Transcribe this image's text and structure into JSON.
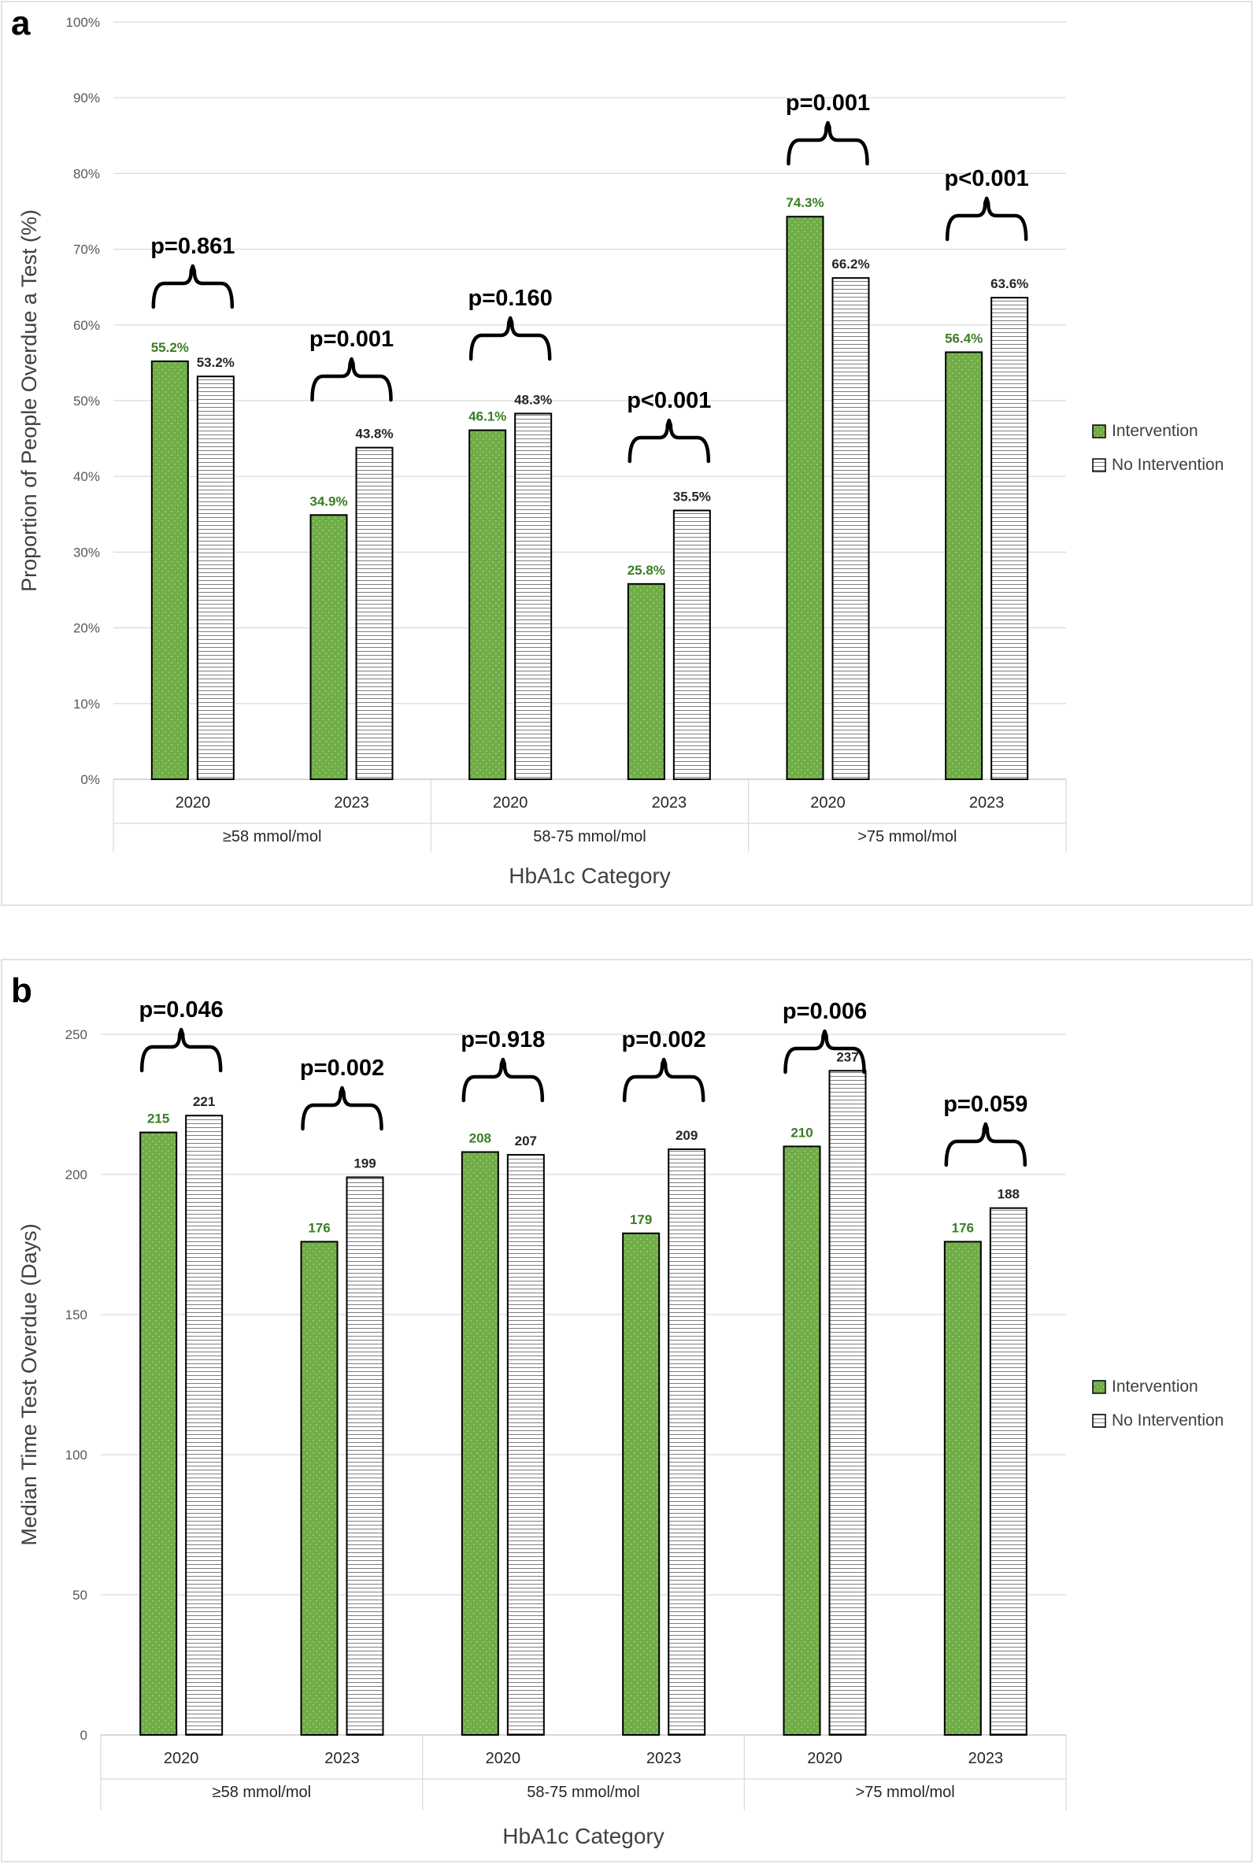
{
  "colors": {
    "intervention": "#70ad47",
    "no_intervention": "#ffffff",
    "bar_outline": "#000000",
    "gridline": "#d9d9d9",
    "intervention_label": "#3b7d23"
  },
  "chart_data": [
    {
      "panel_label": "a",
      "type": "bar",
      "ylabel": "Proportion of People Overdue a Test (%)",
      "xlabel": "HbA1c Category",
      "ylim": [
        0,
        100
      ],
      "y_ticks": [
        "0%",
        "10%",
        "20%",
        "30%",
        "40%",
        "50%",
        "60%",
        "70%",
        "80%",
        "90%",
        "100%"
      ],
      "grid": true,
      "legend_position": "right",
      "groups": [
        "≥58 mmol/mol",
        "58-75 mmol/mol",
        ">75 mmol/mol"
      ],
      "categories": [
        "2020",
        "2023",
        "2020",
        "2023",
        "2020",
        "2023"
      ],
      "series": [
        {
          "name": "Intervention",
          "values": [
            55.2,
            34.9,
            46.1,
            25.8,
            74.3,
            56.4
          ],
          "labels": [
            "55.2%",
            "34.9%",
            "46.1%",
            "25.8%",
            "74.3%",
            "56.4%"
          ]
        },
        {
          "name": "No Intervention",
          "values": [
            53.2,
            43.8,
            48.3,
            35.5,
            66.2,
            63.6
          ],
          "labels": [
            "53.2%",
            "43.8%",
            "48.3%",
            "35.5%",
            "66.2%",
            "63.6%"
          ]
        }
      ],
      "p_values": [
        "p=0.861",
        "p=0.001",
        "p=0.160",
        "p<0.001",
        "p=0.001",
        "p<0.001"
      ]
    },
    {
      "panel_label": "b",
      "type": "bar",
      "ylabel": "Median Time Test Overdue (Days)",
      "xlabel": "HbA1c Category",
      "ylim": [
        0,
        250
      ],
      "y_ticks": [
        "0",
        "50",
        "100",
        "150",
        "200",
        "250"
      ],
      "grid": true,
      "legend_position": "right",
      "groups": [
        "≥58 mmol/mol",
        "58-75 mmol/mol",
        ">75 mmol/mol"
      ],
      "categories": [
        "2020",
        "2023",
        "2020",
        "2023",
        "2020",
        "2023"
      ],
      "series": [
        {
          "name": "Intervention",
          "values": [
            215,
            176,
            208,
            179,
            210,
            176
          ],
          "labels": [
            "215",
            "176",
            "208",
            "179",
            "210",
            "176"
          ]
        },
        {
          "name": "No Intervention",
          "values": [
            221,
            199,
            207,
            209,
            237,
            188
          ],
          "labels": [
            "221",
            "199",
            "207",
            "209",
            "237",
            "188"
          ]
        }
      ],
      "p_values": [
        "p=0.046",
        "p=0.002",
        "p=0.918",
        "p=0.002",
        "p=0.006",
        "p=0.059"
      ]
    }
  ]
}
